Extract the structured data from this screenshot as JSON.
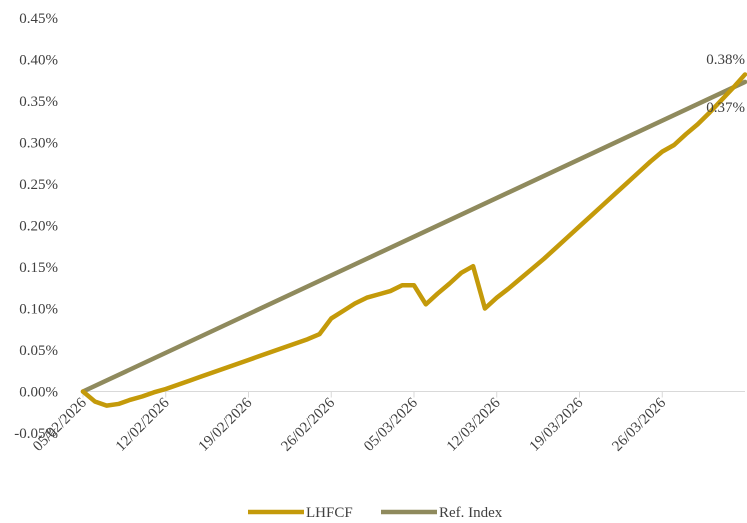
{
  "chart_data": {
    "type": "line",
    "title": "",
    "xlabel": "",
    "ylabel": "",
    "ylim": [
      -0.0005,
      0.0045
    ],
    "yticks": [
      -0.0005,
      0.0,
      0.0005,
      0.001,
      0.0015,
      0.002,
      0.0025,
      0.003,
      0.0035,
      0.004,
      0.0045
    ],
    "ytick_labels": [
      "-0.05%",
      "0.00%",
      "0.05%",
      "0.10%",
      "0.15%",
      "0.20%",
      "0.25%",
      "0.30%",
      "0.35%",
      "0.40%",
      "0.45%"
    ],
    "xlim": [
      "2026-02-05",
      "2026-04-02"
    ],
    "xticks": [
      "2026-02-05",
      "2026-02-12",
      "2026-02-19",
      "2026-02-26",
      "2026-03-05",
      "2026-03-12",
      "2026-03-19",
      "2026-03-26"
    ],
    "xtick_labels": [
      "05/02/2026",
      "12/02/2026",
      "19/02/2026",
      "26/02/2026",
      "05/03/2026",
      "12/03/2026",
      "19/03/2026",
      "26/03/2026"
    ],
    "grid": false,
    "legend_position": "bottom",
    "series": [
      {
        "name": "LHFCF",
        "color": "#c49a0a",
        "end_label": "0.38%",
        "x": [
          "2026-02-05",
          "2026-02-06",
          "2026-02-07",
          "2026-02-08",
          "2026-02-09",
          "2026-02-10",
          "2026-02-11",
          "2026-02-12",
          "2026-02-13",
          "2026-02-14",
          "2026-02-15",
          "2026-02-16",
          "2026-02-17",
          "2026-02-18",
          "2026-02-19",
          "2026-02-20",
          "2026-02-21",
          "2026-02-22",
          "2026-02-23",
          "2026-02-24",
          "2026-02-25",
          "2026-02-26",
          "2026-02-27",
          "2026-02-28",
          "2026-03-01",
          "2026-03-02",
          "2026-03-03",
          "2026-03-04",
          "2026-03-05",
          "2026-03-06",
          "2026-03-07",
          "2026-03-08",
          "2026-03-09",
          "2026-03-10",
          "2026-03-11",
          "2026-03-12",
          "2026-03-13",
          "2026-03-14",
          "2026-03-15",
          "2026-03-16",
          "2026-03-17",
          "2026-03-18",
          "2026-03-19",
          "2026-03-20",
          "2026-03-21",
          "2026-03-22",
          "2026-03-23",
          "2026-03-24",
          "2026-03-25",
          "2026-03-26",
          "2026-03-27",
          "2026-03-28",
          "2026-03-29",
          "2026-03-30",
          "2026-03-31",
          "2026-04-01",
          "2026-04-02"
        ],
        "values": [
          0.0,
          -0.00012,
          -0.00017,
          -0.00015,
          -0.0001,
          -6e-05,
          -1e-05,
          3e-05,
          8e-05,
          0.00013,
          0.00018,
          0.00023,
          0.00028,
          0.00033,
          0.00038,
          0.00043,
          0.00048,
          0.00053,
          0.00058,
          0.00063,
          0.00069,
          0.00088,
          0.00097,
          0.00106,
          0.00113,
          0.00117,
          0.00121,
          0.00128,
          0.00128,
          0.00105,
          0.00118,
          0.0013,
          0.00143,
          0.00151,
          0.001,
          0.00113,
          0.00124,
          0.00136,
          0.00148,
          0.0016,
          0.00173,
          0.00186,
          0.00199,
          0.00212,
          0.00225,
          0.00238,
          0.00251,
          0.00264,
          0.00277,
          0.00289,
          0.00297,
          0.0031,
          0.00322,
          0.00336,
          0.00351,
          0.00366,
          0.00382
        ]
      },
      {
        "name": "Ref. Index",
        "color": "#8f8a5d",
        "end_label": "0.37%",
        "x": [
          "2026-02-05",
          "2026-04-02"
        ],
        "values": [
          0.0,
          0.00373
        ]
      }
    ]
  }
}
